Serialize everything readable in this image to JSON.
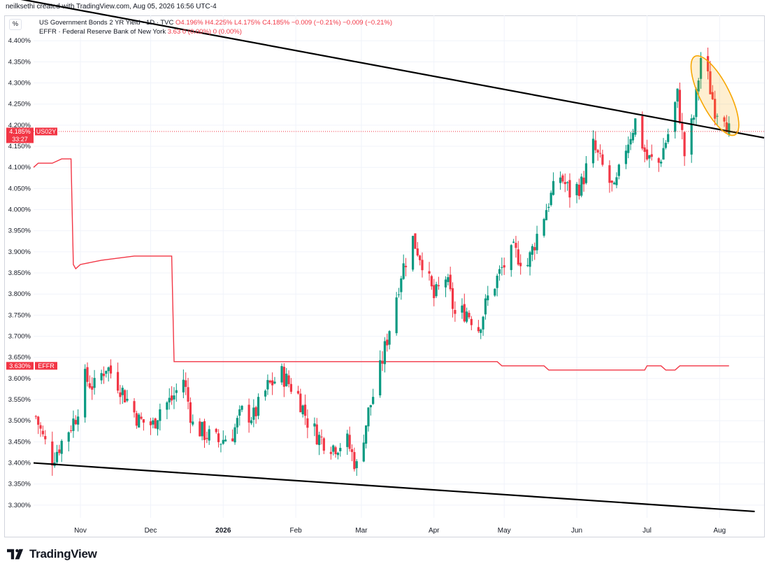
{
  "header": {
    "credit": "neilksethi created with TradingView.com, Aug 05, 2026 16:56 UTC-4"
  },
  "toolbar": {
    "percent_label": "%"
  },
  "legend": {
    "line1_label": "US Government Bonds 2 YR Yield · 1D · TVC",
    "line1_ohlc": "O4.196% H4.225% L4.175% C4.185% −0.009 (−0.21%) −0.009 (−0.21%)",
    "line2_label": "EFFR · Federal Reserve Bank of New York",
    "line2_values": "3.63 0 (0.00%) 0 (0.00%)"
  },
  "price_badges": {
    "us02y_value": "4.185%",
    "us02y_symbol": "US02Y",
    "us02y_countdown": "33:27",
    "effr_value": "3.630%",
    "effr_symbol": "EFFR"
  },
  "brand": {
    "name": "TradingView"
  },
  "colors": {
    "up": "#089981",
    "down": "#f23645",
    "effr": "#f23645",
    "trendline": "#000000",
    "highlight": "#f7a600"
  },
  "chart_data": {
    "type": "line",
    "title": "US Government Bonds 2 YR Yield · 1D · TVC",
    "ylim": [
      3.27,
      4.46
    ],
    "y_ticks": [
      "3.300%",
      "3.350%",
      "3.400%",
      "3.450%",
      "3.500%",
      "3.550%",
      "3.600%",
      "3.650%",
      "3.700%",
      "3.750%",
      "3.800%",
      "3.850%",
      "3.900%",
      "3.950%",
      "4.000%",
      "4.050%",
      "4.100%",
      "4.150%",
      "4.200%",
      "4.250%",
      "4.300%",
      "4.350%",
      "4.400%"
    ],
    "x_ticks": [
      {
        "label": "Nov",
        "date": "2025-11-01"
      },
      {
        "label": "Dec",
        "date": "2025-12-01"
      },
      {
        "label": "2026",
        "date": "2026-01-01"
      },
      {
        "label": "Feb",
        "date": "2026-02-01"
      },
      {
        "label": "Mar",
        "date": "2026-03-01"
      },
      {
        "label": "Apr",
        "date": "2026-04-01"
      },
      {
        "label": "May",
        "date": "2026-05-01"
      },
      {
        "label": "Jun",
        "date": "2026-06-01"
      },
      {
        "label": "Jul",
        "date": "2026-07-01"
      },
      {
        "label": "Aug",
        "date": "2026-08-01"
      }
    ],
    "x_range": [
      "2025-10-12",
      "2026-08-20"
    ],
    "series": [
      {
        "name": "US02Y",
        "kind": "close-path",
        "points": [
          [
            "2025-10-13",
            3.51
          ],
          [
            "2025-10-16",
            3.46
          ],
          [
            "2025-10-20",
            3.41
          ],
          [
            "2025-10-24",
            3.45
          ],
          [
            "2025-10-30",
            3.51
          ],
          [
            "2025-11-03",
            3.6
          ],
          [
            "2025-11-07",
            3.58
          ],
          [
            "2025-11-12",
            3.63
          ],
          [
            "2025-11-17",
            3.59
          ],
          [
            "2025-11-21",
            3.55
          ],
          [
            "2025-11-26",
            3.5
          ],
          [
            "2025-12-02",
            3.49
          ],
          [
            "2025-12-05",
            3.53
          ],
          [
            "2025-12-10",
            3.55
          ],
          [
            "2025-12-15",
            3.6
          ],
          [
            "2025-12-19",
            3.49
          ],
          [
            "2025-12-24",
            3.47
          ],
          [
            "2025-12-30",
            3.45
          ],
          [
            "2026-01-05",
            3.47
          ],
          [
            "2026-01-09",
            3.52
          ],
          [
            "2026-01-14",
            3.51
          ],
          [
            "2026-01-20",
            3.58
          ],
          [
            "2026-01-26",
            3.61
          ],
          [
            "2026-02-02",
            3.56
          ],
          [
            "2026-02-06",
            3.5
          ],
          [
            "2026-02-11",
            3.46
          ],
          [
            "2026-02-17",
            3.44
          ],
          [
            "2026-02-23",
            3.45
          ],
          [
            "2026-02-27",
            3.39
          ],
          [
            "2026-03-04",
            3.52
          ],
          [
            "2026-03-09",
            3.62
          ],
          [
            "2026-03-13",
            3.72
          ],
          [
            "2026-03-18",
            3.85
          ],
          [
            "2026-03-23",
            3.93
          ],
          [
            "2026-03-27",
            3.88
          ],
          [
            "2026-04-01",
            3.79
          ],
          [
            "2026-04-06",
            3.84
          ],
          [
            "2026-04-10",
            3.75
          ],
          [
            "2026-04-15",
            3.76
          ],
          [
            "2026-04-20",
            3.72
          ],
          [
            "2026-04-24",
            3.79
          ],
          [
            "2026-04-30",
            3.86
          ],
          [
            "2026-05-05",
            3.9
          ],
          [
            "2026-05-11",
            3.87
          ],
          [
            "2026-05-15",
            3.94
          ],
          [
            "2026-05-20",
            4.02
          ],
          [
            "2026-05-25",
            4.08
          ],
          [
            "2026-05-29",
            4.04
          ],
          [
            "2026-06-03",
            4.06
          ],
          [
            "2026-06-08",
            4.15
          ],
          [
            "2026-06-12",
            4.1
          ],
          [
            "2026-06-17",
            4.04
          ],
          [
            "2026-06-22",
            4.15
          ],
          [
            "2026-06-26",
            4.21
          ],
          [
            "2026-07-01",
            4.12
          ],
          [
            "2026-07-06",
            4.11
          ],
          [
            "2026-07-10",
            4.18
          ],
          [
            "2026-07-14",
            4.27
          ],
          [
            "2026-07-17",
            4.13
          ],
          [
            "2026-07-21",
            4.22
          ],
          [
            "2026-07-24",
            4.36
          ],
          [
            "2026-07-27",
            4.31
          ],
          [
            "2026-07-30",
            4.24
          ],
          [
            "2026-08-03",
            4.23
          ],
          [
            "2026-08-05",
            4.185
          ]
        ]
      },
      {
        "name": "EFFR",
        "kind": "step",
        "points": [
          [
            "2025-10-12",
            4.1
          ],
          [
            "2025-10-14",
            4.11
          ],
          [
            "2025-10-20",
            4.11
          ],
          [
            "2025-10-24",
            4.12
          ],
          [
            "2025-10-28",
            4.12
          ],
          [
            "2025-10-29",
            3.87
          ],
          [
            "2025-10-30",
            3.86
          ],
          [
            "2025-11-01",
            3.87
          ],
          [
            "2025-11-10",
            3.88
          ],
          [
            "2025-11-24",
            3.89
          ],
          [
            "2025-12-10",
            3.89
          ],
          [
            "2025-12-11",
            3.64
          ],
          [
            "2026-04-28",
            3.64
          ],
          [
            "2026-04-30",
            3.63
          ],
          [
            "2026-05-18",
            3.63
          ],
          [
            "2026-05-20",
            3.62
          ],
          [
            "2026-06-30",
            3.62
          ],
          [
            "2026-07-01",
            3.63
          ],
          [
            "2026-07-07",
            3.63
          ],
          [
            "2026-07-09",
            3.62
          ],
          [
            "2026-07-13",
            3.62
          ],
          [
            "2026-07-15",
            3.63
          ],
          [
            "2026-08-05",
            3.63
          ]
        ]
      }
    ],
    "trendlines": [
      {
        "from": [
          "2025-09-01",
          4.535
        ],
        "to": [
          "2026-08-20",
          4.17
        ]
      },
      {
        "from": [
          "2025-10-12",
          3.4
        ],
        "to": [
          "2026-08-16",
          3.285
        ]
      }
    ],
    "highlight": {
      "date": "2026-07-30",
      "value": 4.27,
      "shape": "ellipse"
    },
    "current_price": 4.185,
    "current_effr": 3.63
  }
}
